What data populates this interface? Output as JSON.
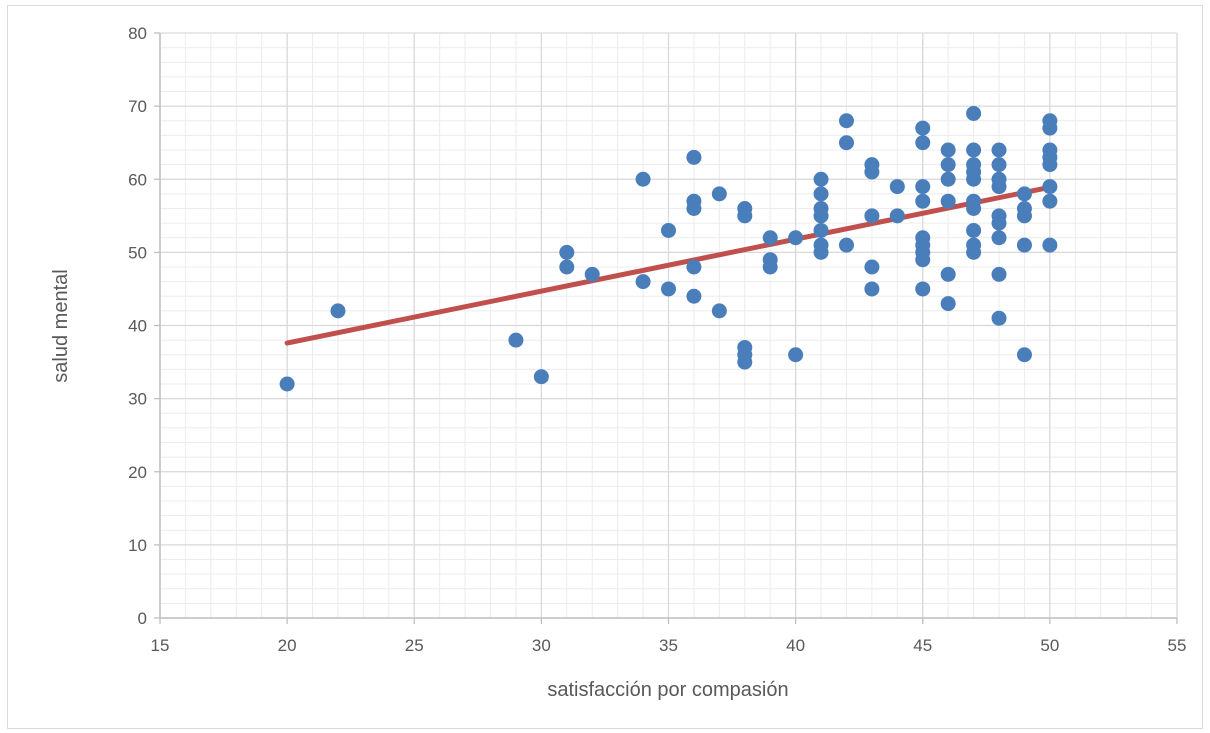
{
  "chart_data": {
    "type": "scatter",
    "title": "",
    "xlabel": "satisfacción por compasión",
    "ylabel": "salud mental",
    "xlim": [
      15,
      55
    ],
    "ylim": [
      0,
      80
    ],
    "x_ticks": [
      15,
      20,
      25,
      30,
      35,
      40,
      45,
      50,
      55
    ],
    "y_ticks": [
      0,
      10,
      20,
      30,
      40,
      50,
      60,
      70,
      80
    ],
    "x_tick_labels": [
      "15",
      "20",
      "25",
      "30",
      "35",
      "40",
      "45",
      "50",
      "55"
    ],
    "y_tick_labels": [
      "0",
      "10",
      "20",
      "30",
      "40",
      "50",
      "60",
      "70",
      "80"
    ],
    "grid": "major and minor",
    "legend": "none",
    "colors": {
      "points": "#4a7ebb",
      "trendline": "#c0504d",
      "grid_major": "#d9d9d9",
      "grid_minor": "#ececec",
      "text": "#595959"
    },
    "points": [
      [
        20,
        32
      ],
      [
        22,
        42
      ],
      [
        29,
        38
      ],
      [
        30,
        33
      ],
      [
        31,
        50
      ],
      [
        31,
        48
      ],
      [
        32,
        47
      ],
      [
        34,
        60
      ],
      [
        34,
        46
      ],
      [
        35,
        53
      ],
      [
        35,
        45
      ],
      [
        36,
        63
      ],
      [
        36,
        57
      ],
      [
        36,
        56
      ],
      [
        36,
        48
      ],
      [
        36,
        44
      ],
      [
        37,
        58
      ],
      [
        37,
        42
      ],
      [
        38,
        56
      ],
      [
        38,
        55
      ],
      [
        38,
        37
      ],
      [
        38,
        36
      ],
      [
        38,
        35
      ],
      [
        39,
        52
      ],
      [
        39,
        49
      ],
      [
        39,
        48
      ],
      [
        40,
        52
      ],
      [
        40,
        36
      ],
      [
        41,
        60
      ],
      [
        41,
        58
      ],
      [
        41,
        56
      ],
      [
        41,
        55
      ],
      [
        41,
        53
      ],
      [
        41,
        51
      ],
      [
        41,
        50
      ],
      [
        42,
        68
      ],
      [
        42,
        65
      ],
      [
        42,
        51
      ],
      [
        43,
        62
      ],
      [
        43,
        61
      ],
      [
        43,
        55
      ],
      [
        43,
        48
      ],
      [
        43,
        45
      ],
      [
        44,
        59
      ],
      [
        44,
        55
      ],
      [
        45,
        67
      ],
      [
        45,
        65
      ],
      [
        45,
        59
      ],
      [
        45,
        57
      ],
      [
        45,
        52
      ],
      [
        45,
        51
      ],
      [
        45,
        50
      ],
      [
        45,
        49
      ],
      [
        45,
        45
      ],
      [
        46,
        64
      ],
      [
        46,
        62
      ],
      [
        46,
        60
      ],
      [
        46,
        57
      ],
      [
        46,
        47
      ],
      [
        46,
        43
      ],
      [
        47,
        69
      ],
      [
        47,
        64
      ],
      [
        47,
        62
      ],
      [
        47,
        61
      ],
      [
        47,
        60
      ],
      [
        47,
        57
      ],
      [
        47,
        56
      ],
      [
        47,
        53
      ],
      [
        47,
        51
      ],
      [
        47,
        50
      ],
      [
        48,
        64
      ],
      [
        48,
        62
      ],
      [
        48,
        60
      ],
      [
        48,
        59
      ],
      [
        48,
        55
      ],
      [
        48,
        54
      ],
      [
        48,
        52
      ],
      [
        48,
        47
      ],
      [
        48,
        41
      ],
      [
        49,
        58
      ],
      [
        49,
        56
      ],
      [
        49,
        55
      ],
      [
        49,
        51
      ],
      [
        49,
        36
      ],
      [
        50,
        68
      ],
      [
        50,
        67
      ],
      [
        50,
        64
      ],
      [
        50,
        63
      ],
      [
        50,
        62
      ],
      [
        50,
        59
      ],
      [
        50,
        57
      ],
      [
        50,
        51
      ]
    ],
    "trendline": {
      "x": [
        20,
        50
      ],
      "y": [
        37.6,
        58.9
      ]
    }
  }
}
